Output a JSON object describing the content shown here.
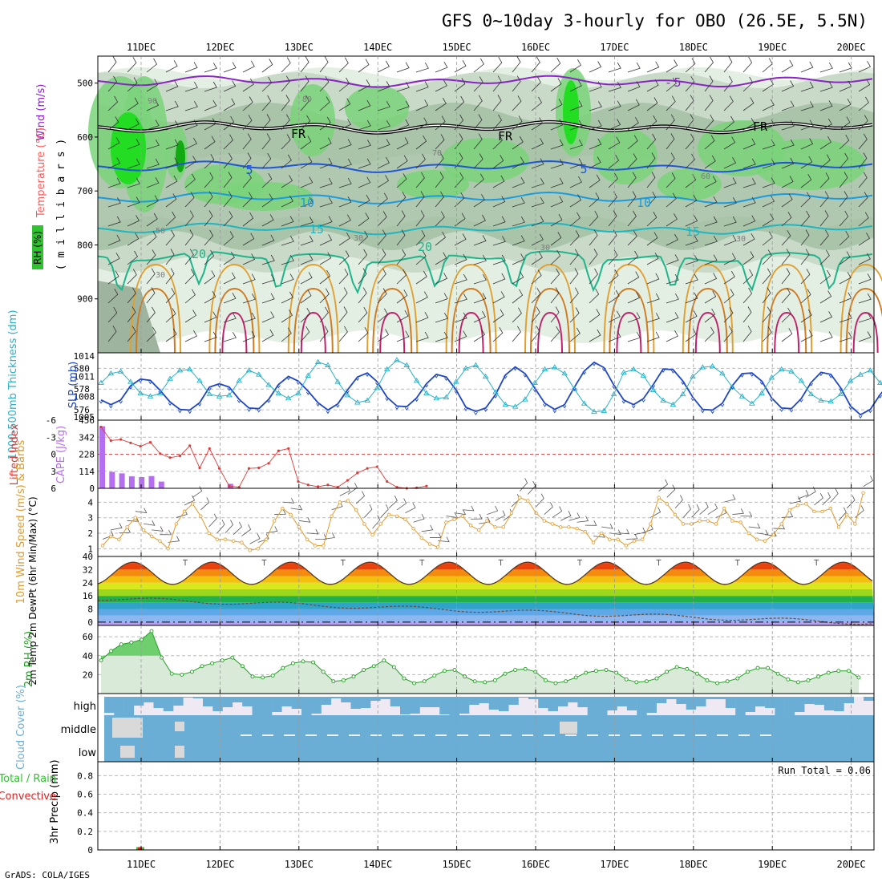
{
  "title": "GFS 0~10day 3-hourly for OBO (26.5E, 5.5N)",
  "footer": "GrADS: COLA/IGES",
  "date_labels": [
    "11DEC",
    "12DEC",
    "13DEC",
    "14DEC",
    "15DEC",
    "16DEC",
    "17DEC",
    "18DEC",
    "19DEC",
    "20DEC"
  ],
  "colors": {
    "wind": "#8c1ed2",
    "temperature": "#ff5a5a",
    "rh": "#2fc22f",
    "thickness": "#23b2c8",
    "slp": "#1e46c8",
    "lifted_index": "#dd3a3a",
    "cape": "#b46ef0",
    "wind10": "#e39a28",
    "rh2m": "#23a023",
    "cloud": "#6aaed6",
    "precip_total": "#2fc22f",
    "precip_conv": "#e02020"
  },
  "chart_data": [
    {
      "type": "heatmap",
      "panel": "upper-air",
      "ylabel_wind": "Wind (m/s)",
      "ylabel_temp": "Temperature (°C)",
      "ylabel_rh": "RH (%)",
      "ylabel_p": "( m i l l i b a r s )",
      "yticks": [
        "500",
        "600",
        "700",
        "800",
        "900"
      ],
      "ylim": [
        1000,
        450
      ],
      "isotherm_labels": [
        "5",
        "FR",
        "FR",
        "FR",
        "5",
        "5",
        "10",
        "10",
        "15",
        "15",
        "20",
        "20"
      ],
      "rh_contour_labels": [
        "90",
        "80",
        "70",
        "60",
        "50",
        "30",
        "30",
        "30",
        "30"
      ],
      "isotherms": [
        {
          "label": "-5",
          "p": 497
        },
        {
          "label": "0",
          "p": 582
        },
        {
          "label": "5",
          "p": 655
        },
        {
          "label": "10",
          "p": 713
        },
        {
          "label": "15",
          "p": 770
        },
        {
          "label": "20",
          "p": 822
        }
      ]
    },
    {
      "type": "line",
      "panel": "thickness-slp",
      "ylabel_left": "1000-500mb Thickness (dm)",
      "ylabel_right": "SLP (mb)",
      "yticks_left": [
        "576",
        "578",
        "580"
      ],
      "yticks_right": [
        "1005",
        "1008",
        "1011",
        "1014"
      ],
      "ylim_left": [
        575,
        581.5
      ],
      "ylim_right": [
        1004.5,
        1014.5
      ],
      "series": [
        {
          "name": "Thickness",
          "values": [
            578.6,
            579.5,
            579.7,
            578.7,
            577.6,
            577.3,
            577.6,
            579.0,
            579.8,
            579.9,
            578.8,
            577.5,
            577.3,
            577.4,
            578.8,
            579.8,
            579.4,
            578.4,
            577.6,
            577.1,
            577.6,
            579.3,
            580.6,
            580.3,
            578.7,
            577.4,
            576.7,
            576.9,
            578.1,
            579.9,
            580.8,
            580.3,
            578.8,
            577.6,
            577.1,
            577.2,
            578.7,
            580.0,
            580.3,
            579.2,
            577.7,
            576.5,
            576.3,
            577.0,
            578.6,
            579.9,
            580.1,
            579.5,
            578.0,
            576.6,
            575.8,
            575.9,
            577.5,
            579.6,
            579.9,
            579.3,
            577.9,
            576.9,
            576.5,
            577.5,
            579.2,
            580.1,
            580.2,
            579.5,
            578.2,
            577.3,
            576.6,
            577.6,
            579.1,
            579.9,
            579.7,
            578.8,
            577.5,
            576.9,
            576.8,
            577.5,
            578.8,
            579.4,
            579.8,
            578.6,
            577.6,
            576.9,
            576.4,
            576.8
          ]
        },
        {
          "name": "SLP",
          "values": [
            1007.5,
            1006.8,
            1007.5,
            1009.6,
            1010.6,
            1010.4,
            1008.9,
            1007.2,
            1006.1,
            1006.0,
            1007.1,
            1009.4,
            1009.9,
            1009.4,
            1007.6,
            1006.3,
            1006.2,
            1007.6,
            1009.8,
            1011.0,
            1010.3,
            1008.8,
            1007.1,
            1006.0,
            1006.9,
            1009.0,
            1010.9,
            1011.5,
            1010.2,
            1007.9,
            1006.6,
            1006.5,
            1007.8,
            1009.9,
            1011.3,
            1010.9,
            1009.0,
            1006.4,
            1005.8,
            1006.3,
            1008.3,
            1011.2,
            1012.4,
            1011.4,
            1009.2,
            1007.0,
            1006.1,
            1006.8,
            1009.4,
            1011.8,
            1013.1,
            1012.3,
            1009.7,
            1007.5,
            1006.8,
            1007.7,
            1009.8,
            1012.1,
            1012.0,
            1010.3,
            1007.9,
            1006.1,
            1006.0,
            1007.0,
            1009.6,
            1011.4,
            1011.5,
            1010.3,
            1007.8,
            1006.3,
            1006.2,
            1007.7,
            1010.1,
            1011.6,
            1011.3,
            1009.3,
            1006.6,
            1005.3,
            1006.1,
            1008.3,
            1010.0,
            1010.3,
            1009.3,
            1008.6
          ]
        }
      ]
    },
    {
      "type": "bar",
      "panel": "lifted-index-cape",
      "ylabel_left": "Lifted Index",
      "ylabel_right": "CAPE (J/kg)",
      "yticks_left": [
        "-6",
        "-3",
        "0",
        "3",
        "6"
      ],
      "yticks_right": [
        "0",
        "114",
        "228",
        "342",
        "456"
      ],
      "ylim_left": [
        -6,
        6
      ],
      "ylim_right": [
        0,
        456
      ],
      "series": [
        {
          "name": "CAPE",
          "values": [
            415,
            110,
            100,
            80,
            75,
            82,
            45,
            0,
            0,
            0,
            0,
            0,
            0,
            30,
            0
          ]
        },
        {
          "name": "Lifted Index",
          "values": [
            -4.8,
            -2.4,
            -2.6,
            -2.0,
            -1.4,
            -2.1,
            -0.1,
            0.6,
            0.3,
            -1.5,
            2.4,
            -1.0,
            2.5,
            5.6,
            5.8,
            2.5,
            2.4,
            1.6,
            -0.6,
            -1.0,
            4.8,
            5.4,
            5.7,
            5.4,
            5.8,
            4.6,
            3.3,
            2.5,
            2.2,
            4.8,
            5.8,
            6.0,
            5.9,
            5.6
          ]
        }
      ]
    },
    {
      "type": "line",
      "panel": "wind-10m",
      "ylabel": "10m Wind Speed (m/s) & Barbs",
      "yticks": [
        "1",
        "2",
        "3",
        "4"
      ],
      "ylim": [
        0.5,
        4.9
      ],
      "series": [
        {
          "name": "10m Wind Speed",
          "values": [
            1.2,
            1.8,
            1.6,
            2.4,
            3.0,
            2.2,
            1.8,
            1.5,
            1.0,
            2.6,
            3.4,
            3.9,
            3.1,
            2.0,
            1.6,
            1.6,
            1.5,
            1.4,
            0.9,
            1.0,
            1.6,
            2.8,
            3.6,
            3.2,
            2.4,
            1.6,
            1.2,
            1.2,
            3.1,
            4.0,
            4.1,
            3.5,
            2.6,
            1.9,
            2.6,
            3.2,
            3.1,
            2.9,
            2.3,
            1.7,
            1.3,
            1.1,
            2.7,
            2.9,
            3.1,
            2.5,
            2.2,
            2.8,
            2.4,
            2.4,
            3.3,
            4.3,
            4.1,
            3.3,
            2.8,
            2.6,
            2.4,
            2.4,
            2.3,
            2.1,
            1.4,
            2.0,
            1.6,
            1.6,
            1.2,
            1.5,
            1.6,
            2.6,
            4.3,
            3.9,
            3.2,
            2.6,
            2.6,
            2.8,
            2.8,
            2.6,
            3.6,
            2.8,
            2.7,
            2.0,
            1.6,
            1.5,
            1.9,
            2.6,
            3.5,
            3.8,
            3.9,
            3.4,
            3.4,
            3.6,
            2.4,
            3.2,
            2.6,
            4.6
          ]
        }
      ]
    },
    {
      "type": "area",
      "panel": "temperature-2m",
      "ylabel": "2m Temp 2m DewPt (6hr Min/Max) (°C)",
      "yticks": [
        "0",
        "8",
        "16",
        "24",
        "32",
        "40"
      ],
      "ylim": [
        -2,
        40
      ],
      "days": 10,
      "tmax": 36.5,
      "tmin": 23,
      "dewpoint_start": 14.5,
      "dewpoint_end": -0.5
    },
    {
      "type": "area",
      "panel": "rh-2m",
      "ylabel": "2m RH (%)",
      "yticks": [
        "20",
        "40",
        "60"
      ],
      "ylim": [
        0,
        72
      ],
      "series": [
        {
          "name": "2m RH",
          "values": [
            35,
            45,
            52,
            54,
            57,
            66,
            38,
            21,
            20,
            23,
            29,
            32,
            35,
            38,
            29,
            18,
            17,
            19,
            27,
            32,
            34,
            33,
            23,
            13,
            14,
            18,
            25,
            29,
            35,
            28,
            16,
            11,
            13,
            19,
            24,
            25,
            18,
            13,
            12,
            14,
            21,
            25,
            26,
            23,
            14,
            11,
            13,
            17,
            22,
            24,
            25,
            22,
            15,
            12,
            13,
            16,
            23,
            28,
            26,
            21,
            14,
            11,
            13,
            16,
            23,
            27,
            27,
            21,
            15,
            12,
            14,
            18,
            22,
            24,
            24,
            17
          ]
        }
      ]
    },
    {
      "type": "heatmap",
      "panel": "cloud-cover",
      "ylabel": "Cloud Cover (%)",
      "rows": [
        "high",
        "middle",
        "low"
      ]
    },
    {
      "type": "bar",
      "panel": "precip",
      "ylabel": "3hr Precip (mm)",
      "legend_total": "Total / Rain",
      "legend_conv": "Convective",
      "yticks": [
        "0",
        "0.2",
        "0.4",
        "0.6",
        "0.8"
      ],
      "ylim": [
        0,
        0.95
      ],
      "run_total": "Run Total = 0.06",
      "series": [
        {
          "name": "Total / Rain",
          "values": [
            0.03
          ]
        },
        {
          "name": "Convective",
          "values": [
            0.03
          ]
        }
      ]
    }
  ]
}
